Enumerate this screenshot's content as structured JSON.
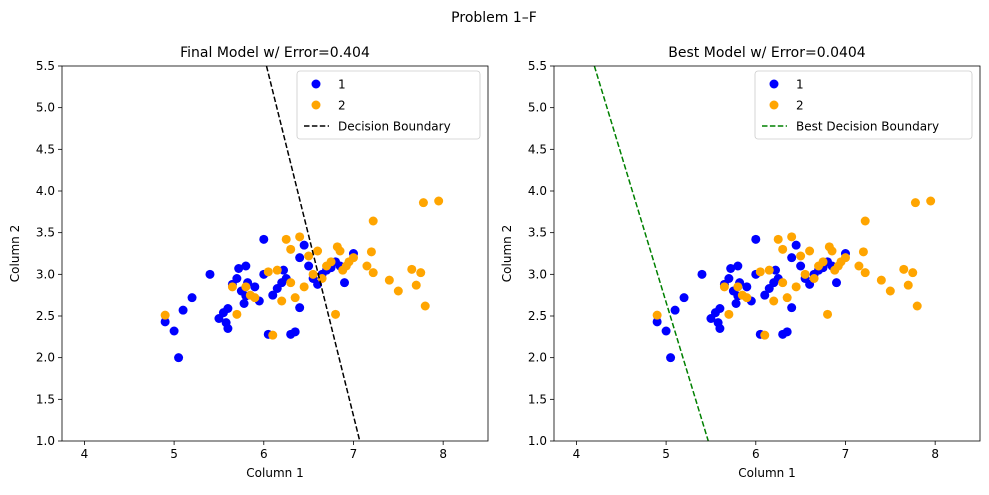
{
  "suptitle": "Problem 1–F",
  "chart_data": [
    {
      "type": "scatter",
      "title": "Final Model w/ Error=0.404",
      "xlabel": "Column 1",
      "ylabel": "Column 2",
      "xlim": [
        3.75,
        8.5
      ],
      "ylim": [
        1.0,
        5.5
      ],
      "xticks": [
        "4",
        "5",
        "6",
        "7",
        "8"
      ],
      "yticks": [
        "1.0",
        "1.5",
        "2.0",
        "2.5",
        "3.0",
        "3.5",
        "4.0",
        "4.5",
        "5.0",
        "5.5"
      ],
      "grid": false,
      "legend_position": "top-right",
      "series": [
        {
          "name": "1",
          "color": "#0000ff",
          "points": [
            [
              4.9,
              2.43
            ],
            [
              5.0,
              2.32
            ],
            [
              5.05,
              2.0
            ],
            [
              5.1,
              2.57
            ],
            [
              5.2,
              2.72
            ],
            [
              5.4,
              3.0
            ],
            [
              5.5,
              2.47
            ],
            [
              5.55,
              2.54
            ],
            [
              5.58,
              2.42
            ],
            [
              5.6,
              2.35
            ],
            [
              5.6,
              2.59
            ],
            [
              5.65,
              2.88
            ],
            [
              5.7,
              2.95
            ],
            [
              5.72,
              3.07
            ],
            [
              5.75,
              2.8
            ],
            [
              5.78,
              2.65
            ],
            [
              5.8,
              2.74
            ],
            [
              5.8,
              3.1
            ],
            [
              5.82,
              2.9
            ],
            [
              5.9,
              2.85
            ],
            [
              5.95,
              2.68
            ],
            [
              6.0,
              3.0
            ],
            [
              6.0,
              3.42
            ],
            [
              6.05,
              2.28
            ],
            [
              6.1,
              2.75
            ],
            [
              6.15,
              2.83
            ],
            [
              6.2,
              2.9
            ],
            [
              6.22,
              3.05
            ],
            [
              6.25,
              2.95
            ],
            [
              6.3,
              2.28
            ],
            [
              6.35,
              2.31
            ],
            [
              6.4,
              2.6
            ],
            [
              6.4,
              3.2
            ],
            [
              6.45,
              3.35
            ],
            [
              6.5,
              3.1
            ],
            [
              6.55,
              2.95
            ],
            [
              6.6,
              2.88
            ],
            [
              6.65,
              3.0
            ],
            [
              6.7,
              3.05
            ],
            [
              6.75,
              3.08
            ],
            [
              6.8,
              3.15
            ],
            [
              6.85,
              3.1
            ],
            [
              6.9,
              2.9
            ],
            [
              7.0,
              3.25
            ]
          ]
        },
        {
          "name": "2",
          "color": "#ffa500",
          "points": [
            [
              4.9,
              2.51
            ],
            [
              5.65,
              2.85
            ],
            [
              5.7,
              2.52
            ],
            [
              5.8,
              2.85
            ],
            [
              5.85,
              2.75
            ],
            [
              5.9,
              2.72
            ],
            [
              6.05,
              3.03
            ],
            [
              6.1,
              2.27
            ],
            [
              6.15,
              3.05
            ],
            [
              6.2,
              2.68
            ],
            [
              6.25,
              3.42
            ],
            [
              6.3,
              3.3
            ],
            [
              6.3,
              2.9
            ],
            [
              6.35,
              2.72
            ],
            [
              6.4,
              3.45
            ],
            [
              6.45,
              2.85
            ],
            [
              6.5,
              3.22
            ],
            [
              6.55,
              3.0
            ],
            [
              6.6,
              3.28
            ],
            [
              6.65,
              2.95
            ],
            [
              6.7,
              3.1
            ],
            [
              6.75,
              3.15
            ],
            [
              6.8,
              2.52
            ],
            [
              6.82,
              3.33
            ],
            [
              6.85,
              3.28
            ],
            [
              6.88,
              3.05
            ],
            [
              6.92,
              3.1
            ],
            [
              6.95,
              3.15
            ],
            [
              7.0,
              3.2
            ],
            [
              7.15,
              3.1
            ],
            [
              7.2,
              3.27
            ],
            [
              7.22,
              3.64
            ],
            [
              7.22,
              3.02
            ],
            [
              7.4,
              2.93
            ],
            [
              7.5,
              2.8
            ],
            [
              7.65,
              3.06
            ],
            [
              7.7,
              2.87
            ],
            [
              7.75,
              3.02
            ],
            [
              7.78,
              3.86
            ],
            [
              7.8,
              2.62
            ],
            [
              7.95,
              3.88
            ]
          ]
        }
      ],
      "line": {
        "name": "Decision Boundary",
        "color": "#000000",
        "style": "dashed",
        "x": [
          6.03,
          7.07
        ],
        "y": [
          5.5,
          1.0
        ]
      }
    },
    {
      "type": "scatter",
      "title": "Best Model w/ Error=0.0404",
      "xlabel": "Column 1",
      "ylabel": "Column 2",
      "xlim": [
        3.75,
        8.5
      ],
      "ylim": [
        1.0,
        5.5
      ],
      "xticks": [
        "4",
        "5",
        "6",
        "7",
        "8"
      ],
      "yticks": [
        "1.0",
        "1.5",
        "2.0",
        "2.5",
        "3.0",
        "3.5",
        "4.0",
        "4.5",
        "5.0",
        "5.5"
      ],
      "grid": false,
      "legend_position": "top-right",
      "series": [
        {
          "name": "1",
          "color": "#0000ff",
          "points": [
            [
              4.9,
              2.43
            ],
            [
              5.0,
              2.32
            ],
            [
              5.05,
              2.0
            ],
            [
              5.1,
              2.57
            ],
            [
              5.2,
              2.72
            ],
            [
              5.4,
              3.0
            ],
            [
              5.5,
              2.47
            ],
            [
              5.55,
              2.54
            ],
            [
              5.58,
              2.42
            ],
            [
              5.6,
              2.35
            ],
            [
              5.6,
              2.59
            ],
            [
              5.65,
              2.88
            ],
            [
              5.7,
              2.95
            ],
            [
              5.72,
              3.07
            ],
            [
              5.75,
              2.8
            ],
            [
              5.78,
              2.65
            ],
            [
              5.8,
              2.74
            ],
            [
              5.8,
              3.1
            ],
            [
              5.82,
              2.9
            ],
            [
              5.9,
              2.85
            ],
            [
              5.95,
              2.68
            ],
            [
              6.0,
              3.0
            ],
            [
              6.0,
              3.42
            ],
            [
              6.05,
              2.28
            ],
            [
              6.1,
              2.75
            ],
            [
              6.15,
              2.83
            ],
            [
              6.2,
              2.9
            ],
            [
              6.22,
              3.05
            ],
            [
              6.25,
              2.95
            ],
            [
              6.3,
              2.28
            ],
            [
              6.35,
              2.31
            ],
            [
              6.4,
              2.6
            ],
            [
              6.4,
              3.2
            ],
            [
              6.45,
              3.35
            ],
            [
              6.5,
              3.1
            ],
            [
              6.55,
              2.95
            ],
            [
              6.6,
              2.88
            ],
            [
              6.65,
              3.0
            ],
            [
              6.7,
              3.05
            ],
            [
              6.75,
              3.08
            ],
            [
              6.8,
              3.15
            ],
            [
              6.85,
              3.1
            ],
            [
              6.9,
              2.9
            ],
            [
              7.0,
              3.25
            ]
          ]
        },
        {
          "name": "2",
          "color": "#ffa500",
          "points": [
            [
              4.9,
              2.51
            ],
            [
              5.65,
              2.85
            ],
            [
              5.7,
              2.52
            ],
            [
              5.8,
              2.85
            ],
            [
              5.85,
              2.75
            ],
            [
              5.9,
              2.72
            ],
            [
              6.05,
              3.03
            ],
            [
              6.1,
              2.27
            ],
            [
              6.15,
              3.05
            ],
            [
              6.2,
              2.68
            ],
            [
              6.25,
              3.42
            ],
            [
              6.3,
              3.3
            ],
            [
              6.3,
              2.9
            ],
            [
              6.35,
              2.72
            ],
            [
              6.4,
              3.45
            ],
            [
              6.45,
              2.85
            ],
            [
              6.5,
              3.22
            ],
            [
              6.55,
              3.0
            ],
            [
              6.6,
              3.28
            ],
            [
              6.65,
              2.95
            ],
            [
              6.7,
              3.1
            ],
            [
              6.75,
              3.15
            ],
            [
              6.8,
              2.52
            ],
            [
              6.82,
              3.33
            ],
            [
              6.85,
              3.28
            ],
            [
              6.88,
              3.05
            ],
            [
              6.92,
              3.1
            ],
            [
              6.95,
              3.15
            ],
            [
              7.0,
              3.2
            ],
            [
              7.15,
              3.1
            ],
            [
              7.2,
              3.27
            ],
            [
              7.22,
              3.64
            ],
            [
              7.22,
              3.02
            ],
            [
              7.4,
              2.93
            ],
            [
              7.5,
              2.8
            ],
            [
              7.65,
              3.06
            ],
            [
              7.7,
              2.87
            ],
            [
              7.75,
              3.02
            ],
            [
              7.78,
              3.86
            ],
            [
              7.8,
              2.62
            ],
            [
              7.95,
              3.88
            ]
          ]
        }
      ],
      "line": {
        "name": "Best Decision Boundary",
        "color": "#008000",
        "style": "dashed",
        "x": [
          4.2,
          5.47
        ],
        "y": [
          5.5,
          1.0
        ]
      }
    }
  ]
}
